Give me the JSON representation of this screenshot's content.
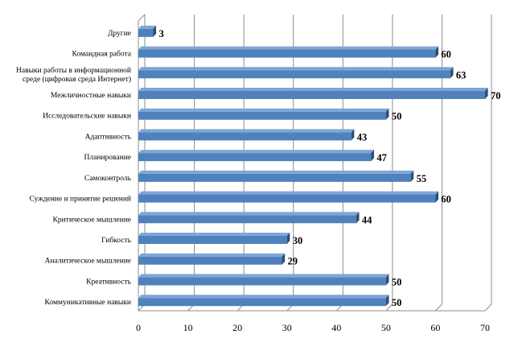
{
  "chart_data": {
    "type": "bar",
    "orientation": "horizontal",
    "style": "3d",
    "categories": [
      "Другие",
      "Командная работа",
      "Навыки работы в информационной|среде (цифровая среда Интернет)",
      "Межличностные навыки",
      "Исследовательские навыки",
      "Адаптивность",
      "Планирование",
      "Самоконтроль",
      "Суждение и принятие  решений",
      "Критическое мышление",
      "Гибкость",
      "Аналитическое мышление",
      "Креативность",
      "Коммуникативные навыки"
    ],
    "values": [
      3,
      60,
      63,
      70,
      50,
      43,
      47,
      55,
      60,
      44,
      30,
      29,
      50,
      50
    ],
    "value_labels": [
      "3",
      "60",
      "63",
      "70",
      "50",
      "43",
      "47",
      "55",
      "60",
      "44",
      "30",
      "29",
      "50",
      "50"
    ],
    "xlim": [
      0,
      70
    ],
    "xticks": [
      "0",
      "10",
      "20",
      "30",
      "40",
      "50",
      "60",
      "70"
    ],
    "grid": "vertical",
    "legend": "none",
    "colors": {
      "bar_front": "#4F81BD",
      "bar_top": "#7EA6D8",
      "bar_side": "#2C4D75",
      "grid": "#8C8C8C"
    }
  }
}
